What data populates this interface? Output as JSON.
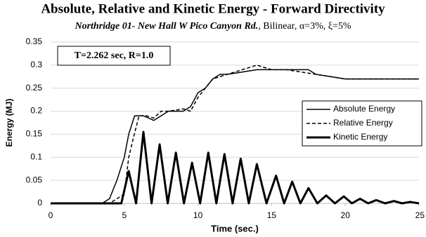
{
  "chart_data": {
    "type": "line",
    "title": "Absolute, Relative and Kinetic Energy  - Forward Directivity",
    "subtitle_bold": "Northridge 01- New Hall W Pico Canyon Rd.",
    "subtitle_rest": ", Bilinear, α=3%, ξ=5%",
    "annotation": "T=2.262 sec, R=1.0",
    "x_label": "Time (sec.)",
    "y_label": "Energy (MJ)",
    "xlim": [
      0,
      25
    ],
    "xticks": [
      0,
      5,
      10,
      15,
      20,
      25
    ],
    "ylim": [
      0,
      0.35
    ],
    "yticks": [
      0,
      0.05,
      0.1,
      0.15,
      0.2,
      0.25,
      0.3,
      0.35
    ],
    "grid": true,
    "legend": "upper right",
    "series": [
      {
        "name": "Absolute Energy",
        "color": "#000000",
        "width": 1.5,
        "dash": false,
        "x": [
          0,
          3.5,
          4.0,
          4.5,
          5.0,
          5.3,
          5.7,
          6.3,
          7.0,
          7.5,
          8.0,
          9.0,
          9.5,
          10.0,
          10.5,
          11.0,
          11.5,
          12.0,
          13.0,
          14.0,
          15.0,
          16.0,
          17.0,
          17.5,
          18.0,
          19.0,
          20.0,
          25.0
        ],
        "values": [
          0,
          0,
          0.01,
          0.05,
          0.1,
          0.15,
          0.19,
          0.19,
          0.18,
          0.19,
          0.2,
          0.2,
          0.21,
          0.24,
          0.25,
          0.27,
          0.28,
          0.28,
          0.285,
          0.29,
          0.29,
          0.29,
          0.29,
          0.29,
          0.28,
          0.275,
          0.27,
          0.27
        ]
      },
      {
        "name": "Relative Energy",
        "color": "#000000",
        "width": 1.5,
        "dash": true,
        "x": [
          0,
          4.0,
          4.5,
          5.0,
          5.3,
          5.6,
          6.0,
          6.5,
          7.0,
          7.5,
          8.0,
          9.0,
          9.5,
          10.0,
          10.5,
          11.0,
          12.0,
          13.0,
          14.0,
          15.0,
          16.0,
          17.0,
          18.0,
          19.0,
          20.0,
          25.0
        ],
        "values": [
          0,
          0,
          0.01,
          0.02,
          0.1,
          0.14,
          0.19,
          0.19,
          0.185,
          0.2,
          0.2,
          0.205,
          0.2,
          0.23,
          0.25,
          0.27,
          0.28,
          0.29,
          0.3,
          0.29,
          0.29,
          0.285,
          0.28,
          0.275,
          0.27,
          0.27
        ]
      },
      {
        "name": "Kinetic Energy",
        "color": "#000000",
        "width": 3,
        "dash": false,
        "x": [
          0,
          4.0,
          4.8,
          5.3,
          5.8,
          6.3,
          6.85,
          7.4,
          7.95,
          8.5,
          9.05,
          9.6,
          10.15,
          10.7,
          11.25,
          11.8,
          12.35,
          12.9,
          13.45,
          14.0,
          14.65,
          15.3,
          15.85,
          16.4,
          16.95,
          17.5,
          18.1,
          18.7,
          19.3,
          19.9,
          20.45,
          21.0,
          21.55,
          22.1,
          22.7,
          23.3,
          23.85,
          24.4,
          25.0
        ],
        "values": [
          0,
          0,
          0,
          0.07,
          0,
          0.155,
          0,
          0.128,
          0,
          0.11,
          0,
          0.088,
          0,
          0.11,
          0,
          0.107,
          0,
          0.097,
          0,
          0.085,
          0,
          0.06,
          0,
          0.047,
          0,
          0.033,
          0,
          0.017,
          0,
          0.015,
          0,
          0.01,
          0,
          0.007,
          0,
          0.005,
          0,
          0.003,
          0
        ]
      }
    ]
  }
}
